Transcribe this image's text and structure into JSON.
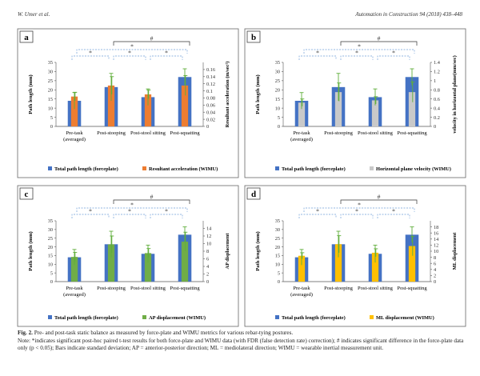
{
  "header": {
    "authors": "W. Umer et al.",
    "journal": "Automation in Construction 94 (2018) 438–448"
  },
  "caption": {
    "label": "Fig. 2.",
    "text": "Pre- and post-task static balance as measured by force-plate and WIMU metrics for various rebar-tying postures.",
    "note": "Note: *indicates significant post-hoc paired t-test results for both force-plate and WIMU data (with FDR (false detection rate) correction); # indicates significant difference in the force-plate data only (p < 0.05); Bars indicate standard deviation; AP = anterior-posterior direction; ML = mediolateral direction; WIMU = wearable inertial measurement unit."
  },
  "colors": {
    "blue": "#4472c4",
    "orange": "#ed7d31",
    "gray": "#c9c9c9",
    "green": "#70ad47",
    "yellow": "#ffc000",
    "axis": "#555555",
    "err": "#5fae3a",
    "sig_blue": "#6f9fd8",
    "sig_black": "#333333"
  },
  "chart_data": [
    {
      "id": "a",
      "panel_label": "a",
      "type": "bar",
      "categories": [
        "Pre-task (averaged)",
        "Post-stooping",
        "Post-stool sitting",
        "Post-squatting"
      ],
      "series": [
        {
          "name": "Total path length (forceplate)",
          "axis": "left",
          "values": [
            14,
            21.5,
            16,
            27
          ],
          "errors": [
            4.5,
            7.5,
            4.5,
            4.5
          ]
        },
        {
          "name": "Resultant acceleration (WIMU)",
          "axis": "right",
          "values": [
            0.084,
            0.115,
            0.09,
            0.115
          ],
          "errors": [
            0.012,
            0.025,
            0.012,
            0.028
          ]
        }
      ],
      "ylabel": "Path length (mm)",
      "ylim": [
        0,
        35
      ],
      "yticks": [
        0,
        5,
        10,
        15,
        20,
        25,
        30,
        35
      ],
      "y2label": "Resultant acceleration (m/sec²)",
      "y2lim": [
        0,
        0.18
      ],
      "y2ticks": [
        "0",
        "0.02",
        "0.04",
        "0.06",
        "0.08",
        "0.1",
        "0.12",
        "0.14",
        "0.16"
      ],
      "sig_star": "*",
      "sig_hash": "#"
    },
    {
      "id": "b",
      "panel_label": "b",
      "type": "bar",
      "categories": [
        "Pre-task (averaged)",
        "Post-stooping",
        "Post-stool sitting",
        "Post-squatting"
      ],
      "series": [
        {
          "name": "Total path length (forceplate)",
          "axis": "left",
          "values": [
            14,
            21.5,
            16,
            27
          ],
          "errors": [
            4.5,
            7.5,
            4.5,
            4.5
          ]
        },
        {
          "name": "Horizontal plane velocity (WIMU)",
          "axis": "right",
          "values": [
            0.52,
            0.75,
            0.57,
            0.75
          ],
          "errors": [
            0.08,
            0.2,
            0.08,
            0.22
          ]
        }
      ],
      "ylabel": "Path length (mm)",
      "ylim": [
        0,
        35
      ],
      "yticks": [
        0,
        5,
        10,
        15,
        20,
        25,
        30,
        35
      ],
      "y2label": "velocity in horizontal plane(mm/sec)",
      "y2lim": [
        0,
        1.4
      ],
      "y2ticks": [
        "0",
        "0.2",
        "0.4",
        "0.6",
        "0.8",
        "1",
        "1.2",
        "1.4"
      ],
      "sig_star": "*",
      "sig_hash": "#"
    },
    {
      "id": "c",
      "panel_label": "c",
      "type": "bar",
      "categories": [
        "Pre-task (averaged)",
        "Post-stooping",
        "Post-stool sitting",
        "Post-squatting"
      ],
      "series": [
        {
          "name": "Total path length (forceplate)",
          "axis": "left",
          "values": [
            14,
            21.5,
            16,
            27
          ],
          "errors": [
            4.5,
            7.5,
            5,
            4.5
          ]
        },
        {
          "name": "AP displacement (WIMU)",
          "axis": "right",
          "values": [
            6.5,
            9.8,
            7.5,
            10.5
          ],
          "errors": [
            1.2,
            2.2,
            1.2,
            2.5
          ]
        }
      ],
      "ylabel": "Path length (mm)",
      "ylim": [
        0,
        35
      ],
      "yticks": [
        0,
        5,
        10,
        15,
        20,
        25,
        30,
        35
      ],
      "y2label": "AP displacement",
      "y2lim": [
        0,
        16
      ],
      "y2ticks": [
        "0",
        "2",
        "4",
        "6",
        "8",
        "10",
        "12",
        "14"
      ],
      "sig_star": "*",
      "sig_hash": "#"
    },
    {
      "id": "d",
      "panel_label": "d",
      "type": "bar",
      "categories": [
        "Pre-task (averaged)",
        "Post-stooping",
        "Post-stool sitting",
        "Post-squatting"
      ],
      "series": [
        {
          "name": "Total path length (forceplate)",
          "axis": "left",
          "values": [
            14,
            21.5,
            16,
            27
          ],
          "errors": [
            4.5,
            7.5,
            5,
            4.5
          ]
        },
        {
          "name": "ML displacement (WIMU)",
          "axis": "right",
          "values": [
            8.5,
            12.3,
            9.5,
            11.7
          ],
          "errors": [
            1.0,
            2.8,
            1.3,
            3.2
          ]
        }
      ],
      "ylabel": "Path length (mm)",
      "ylim": [
        0,
        35
      ],
      "yticks": [
        0,
        5,
        10,
        15,
        20,
        25,
        30,
        35
      ],
      "y2label": "ML displacement",
      "y2lim": [
        0,
        20
      ],
      "y2ticks": [
        "0",
        "2",
        "4",
        "6",
        "8",
        "10",
        "12",
        "14",
        "16",
        "18"
      ],
      "sig_star": "*",
      "sig_hash": "#"
    }
  ]
}
